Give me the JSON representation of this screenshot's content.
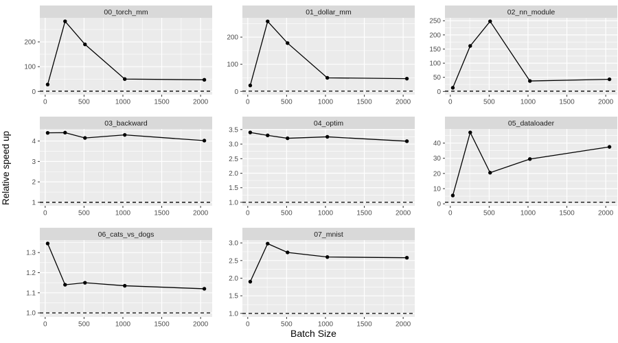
{
  "chart_data": {
    "type": "line",
    "facet_layout": {
      "columns": 3,
      "rows": 3,
      "num_panels": 8
    },
    "x_label": "Batch Size",
    "y_label": "Relative speed up",
    "x": [
      32,
      256,
      512,
      1024,
      2048
    ],
    "x_domain": [
      -69,
      2149
    ],
    "x_ticks": {
      "values": [
        0,
        500,
        1000,
        1500,
        2000
      ],
      "labels": [
        "0",
        "500",
        "1000",
        "1500",
        "2000"
      ]
    },
    "baseline": {
      "y": 1,
      "style": "dashed",
      "color": "#000000"
    },
    "grid": {
      "major": true,
      "minor": true,
      "color": "#ffffff"
    },
    "legend": "none",
    "panels": [
      {
        "title": "00_torch_mm",
        "values": [
          28,
          283,
          190,
          50,
          47
        ],
        "y_domain": [
          -13,
          297
        ],
        "y_ticks": {
          "values": [
            0,
            100,
            200
          ],
          "labels": [
            "0",
            "100",
            "200"
          ]
        }
      },
      {
        "title": "01_dollar_mm",
        "values": [
          22,
          258,
          178,
          50,
          47
        ],
        "y_domain": [
          -12,
          271
        ],
        "y_ticks": {
          "values": [
            0,
            100,
            200
          ],
          "labels": [
            "0",
            "100",
            "200"
          ]
        }
      },
      {
        "title": "02_nn_module",
        "values": [
          13,
          161,
          248,
          37,
          43
        ],
        "y_domain": [
          -11.3,
          260.3
        ],
        "y_ticks": {
          "values": [
            0,
            50,
            100,
            150,
            200,
            250
          ],
          "labels": [
            "0",
            "50",
            "100",
            "150",
            "200",
            "250"
          ]
        }
      },
      {
        "title": "03_backward",
        "values": [
          4.4,
          4.41,
          4.15,
          4.3,
          4.02
        ],
        "y_domain": [
          0.83,
          4.59
        ],
        "y_ticks": {
          "values": [
            1,
            2,
            3,
            4
          ],
          "labels": [
            "1",
            "2",
            "3",
            "4"
          ]
        }
      },
      {
        "title": "04_optim",
        "values": [
          3.4,
          3.3,
          3.2,
          3.25,
          3.1
        ],
        "y_domain": [
          0.88,
          3.52
        ],
        "y_ticks": {
          "values": [
            1,
            1.5,
            2,
            2.5,
            3,
            3.5
          ],
          "labels": [
            "1.0",
            "1.5",
            "2.0",
            "2.5",
            "3.0",
            "3.5"
          ]
        }
      },
      {
        "title": "05_dataloader",
        "values": [
          5.5,
          47,
          20.5,
          29.5,
          37.5
        ],
        "y_domain": [
          -1.3,
          49.3
        ],
        "y_ticks": {
          "values": [
            0,
            10,
            20,
            30,
            40
          ],
          "labels": [
            "0",
            "10",
            "20",
            "30",
            "40"
          ]
        }
      },
      {
        "title": "06_cats_vs_dogs",
        "values": [
          1.345,
          1.14,
          1.15,
          1.135,
          1.12
        ],
        "y_domain": [
          0.98,
          1.362
        ],
        "y_ticks": {
          "values": [
            1.0,
            1.1,
            1.2,
            1.3
          ],
          "labels": [
            "1.0",
            "1.1",
            "1.2",
            "1.3"
          ]
        }
      },
      {
        "title": "07_mnist",
        "values": [
          1.9,
          2.98,
          2.73,
          2.6,
          2.58
        ],
        "y_domain": [
          0.9,
          3.08
        ],
        "y_ticks": {
          "values": [
            1,
            1.5,
            2,
            2.5,
            3
          ],
          "labels": [
            "1.0",
            "1.5",
            "2.0",
            "2.5",
            "3.0"
          ]
        }
      }
    ]
  },
  "style": {
    "panel_bg": "#ebebeb",
    "strip_bg": "#d9d9d9",
    "strip_text": "#1a1a1a",
    "grid_color": "#ffffff",
    "axis_text": "#4d4d4d",
    "tick_mark": "#333333",
    "data_color": "#000000",
    "plot_bg": "#ffffff"
  }
}
